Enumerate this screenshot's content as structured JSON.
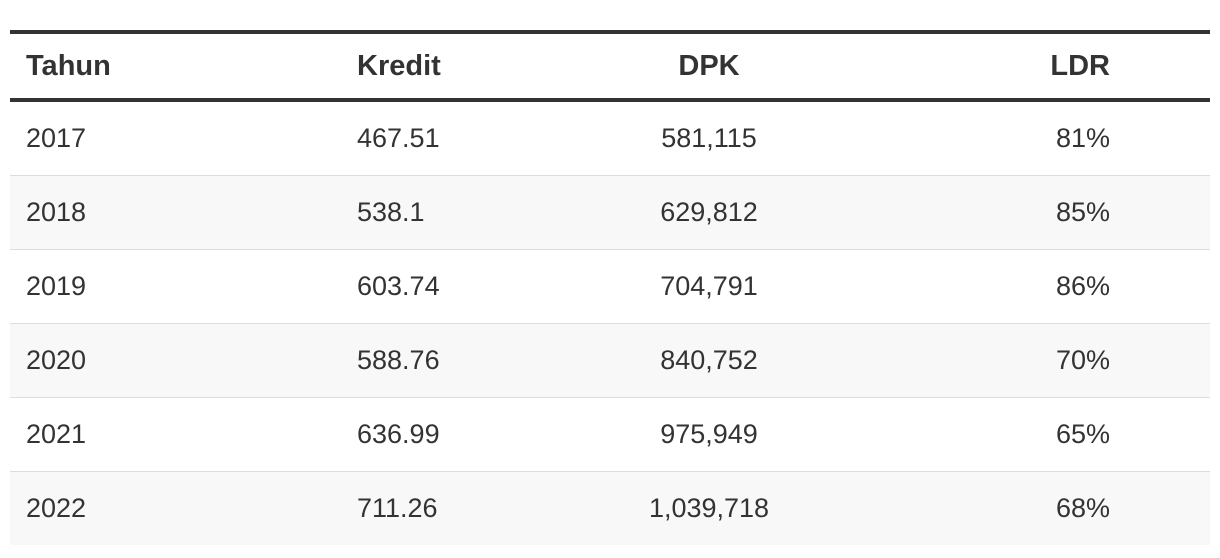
{
  "chart_data": {
    "type": "table",
    "columns": [
      "Tahun",
      "Kredit",
      "DPK",
      "LDR"
    ],
    "rows": [
      [
        "2017",
        "467.51",
        "581,115",
        "81%"
      ],
      [
        "2018",
        "538.1",
        "629,812",
        "85%"
      ],
      [
        "2019",
        "603.74",
        "704,791",
        "86%"
      ],
      [
        "2020",
        "588.76",
        "840,752",
        "70%"
      ],
      [
        "2021",
        "636.99",
        "975,949",
        "65%"
      ],
      [
        "2022",
        "711.26",
        "1,039,718",
        "68%"
      ]
    ]
  }
}
